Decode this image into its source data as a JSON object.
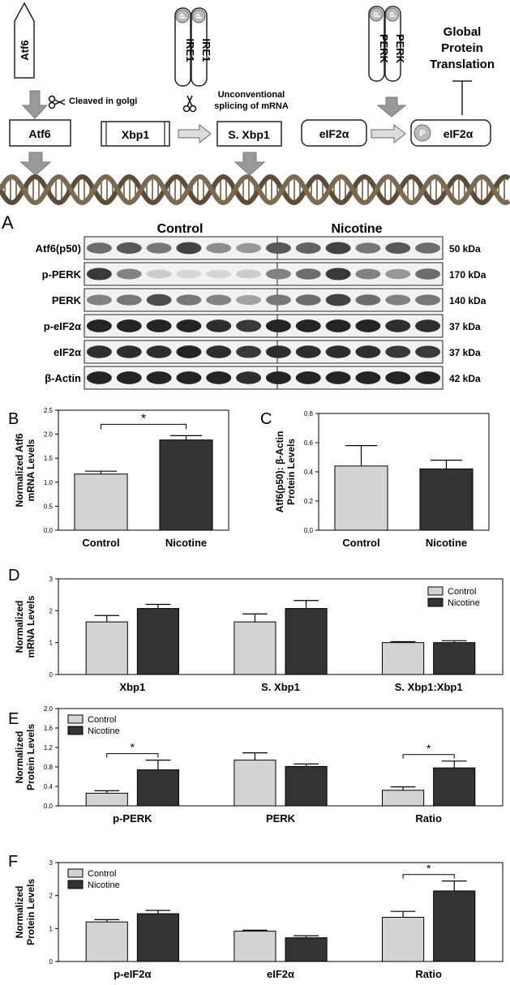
{
  "pathway": {
    "atf6_receptor": "Atf6",
    "ire1_left": "IRE1",
    "ire1_right": "IRE1",
    "perk_left": "PERK",
    "perk_right": "PERK",
    "p_marker": "P",
    "cleaved_text": "Cleaved in golgi",
    "splicing_line1": "Unconventional",
    "splicing_line2": "splicing of mRNA",
    "global_line1": "Global",
    "global_line2": "Protein",
    "global_line3": "Translation",
    "atf6_box": "Atf6",
    "xbp1_box": "Xbp1",
    "sxbp1_box": "S. Xbp1",
    "eif2a_box": "eIF2α",
    "peif2a_box": "eIF2α"
  },
  "blot": {
    "panel_letter": "A",
    "group_control": "Control",
    "group_nicotine": "Nicotine",
    "rows": [
      {
        "label": "Atf6(p50)",
        "size": "50 kDa"
      },
      {
        "label": "p-PERK",
        "size": "170 kDa"
      },
      {
        "label": "PERK",
        "size": "140 kDa"
      },
      {
        "label": "p-eIF2α",
        "size": "37 kDa"
      },
      {
        "label": "eIF2α",
        "size": "37 kDa"
      },
      {
        "label": "β-Actin",
        "size": "42 kDa"
      }
    ]
  },
  "chart_data": [
    {
      "panel": "B",
      "type": "bar",
      "ylabel_line1": "Normalized Atf6",
      "ylabel_line2": "mRNA Levels",
      "categories": [
        "Control",
        "Nicotine"
      ],
      "values": [
        1.17,
        1.88
      ],
      "errors": [
        0.06,
        0.09
      ],
      "colors": [
        "#d3d3d3",
        "#333333"
      ],
      "ylim": [
        0,
        2.5
      ],
      "yticks": [
        "0.0",
        "0.5",
        "1.0",
        "1.5",
        "2.0",
        "2.5"
      ],
      "sig": "*"
    },
    {
      "panel": "C",
      "type": "bar",
      "ylabel_line1": "Atf6(p50): β-Actin",
      "ylabel_line2": "Protein Levels",
      "categories": [
        "Control",
        "Nicotine"
      ],
      "values": [
        0.44,
        0.42
      ],
      "errors": [
        0.14,
        0.06
      ],
      "colors": [
        "#d3d3d3",
        "#333333"
      ],
      "ylim": [
        0,
        0.8
      ],
      "yticks": [
        "0.0",
        "0.2",
        "0.4",
        "0.6",
        "0.8"
      ]
    },
    {
      "panel": "D",
      "type": "bar",
      "ylabel_line1": "Normalized",
      "ylabel_line2": "mRNA Levels",
      "categories": [
        "Xbp1",
        "S. Xbp1",
        "S. Xbp1:Xbp1"
      ],
      "series": [
        {
          "name": "Control",
          "values": [
            1.65,
            1.65,
            1.0
          ],
          "errors": [
            0.2,
            0.25,
            0.03
          ],
          "color": "#d3d3d3"
        },
        {
          "name": "Nicotine",
          "values": [
            2.07,
            2.07,
            1.0
          ],
          "errors": [
            0.13,
            0.25,
            0.06
          ],
          "color": "#333333"
        }
      ],
      "ylim": [
        0,
        3
      ],
      "yticks": [
        "0",
        "1",
        "2",
        "3"
      ],
      "legend": "top-right"
    },
    {
      "panel": "E",
      "type": "bar",
      "ylabel_line1": "Normalized",
      "ylabel_line2": "Protein Levels",
      "categories": [
        "p-PERK",
        "PERK",
        "Ratio"
      ],
      "series": [
        {
          "name": "Control",
          "values": [
            0.26,
            0.94,
            0.32
          ],
          "errors": [
            0.05,
            0.15,
            0.07
          ],
          "color": "#d3d3d3"
        },
        {
          "name": "Nicotine",
          "values": [
            0.74,
            0.81,
            0.78
          ],
          "errors": [
            0.2,
            0.05,
            0.14
          ],
          "color": "#333333"
        }
      ],
      "ylim": [
        0,
        2.0
      ],
      "yticks": [
        "0.0",
        "0.4",
        "0.8",
        "1.2",
        "1.6",
        "2.0"
      ],
      "legend": "top-left",
      "sig": [
        "*",
        "*"
      ]
    },
    {
      "panel": "F",
      "type": "bar",
      "ylabel_line1": "Normalized",
      "ylabel_line2": "Protein Levels",
      "categories": [
        "p-eIF2α",
        "eIF2α",
        "Ratio"
      ],
      "series": [
        {
          "name": "Control",
          "values": [
            1.2,
            0.92,
            1.34
          ],
          "errors": [
            0.07,
            0.03,
            0.18
          ],
          "color": "#d3d3d3"
        },
        {
          "name": "Nicotine",
          "values": [
            1.45,
            0.72,
            2.14
          ],
          "errors": [
            0.1,
            0.06,
            0.3
          ],
          "color": "#333333"
        }
      ],
      "ylim": [
        0,
        3
      ],
      "yticks": [
        "0",
        "1",
        "2",
        "3"
      ],
      "legend": "top-left",
      "sig": [
        "*"
      ]
    }
  ]
}
